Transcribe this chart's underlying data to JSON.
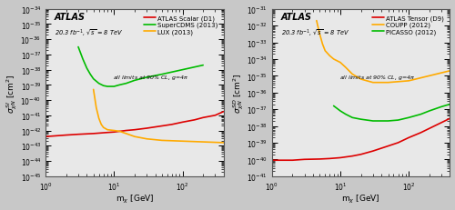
{
  "left": {
    "title": "ATLAS",
    "subtitle": "20.3 fb$^{-1}$, $\\sqrt{s}$ = 8 TeV",
    "annotation": "all limits at 90% CL, g=4$\\pi$",
    "ylabel": "$\\sigma_{\\chi N}^{SI}$ [cm$^{2}$]",
    "xlabel": "m$_{\\chi}$ [GeV]",
    "ylim_exp": [
      -45,
      -34
    ],
    "xlim": [
      1,
      400
    ],
    "curves": {
      "atlas": {
        "label": "ATLAS Scalar (D1)",
        "color": "#dd0000",
        "x": [
          1,
          2,
          3,
          5,
          7,
          10,
          15,
          20,
          30,
          50,
          70,
          100,
          150,
          200,
          300,
          400
        ],
        "y_exp": [
          -42.4,
          -42.3,
          -42.25,
          -42.2,
          -42.15,
          -42.1,
          -42.0,
          -41.95,
          -41.85,
          -41.7,
          -41.6,
          -41.45,
          -41.3,
          -41.15,
          -41.0,
          -40.75
        ]
      },
      "supercdms": {
        "label": "SuperCDMS (2013)",
        "color": "#00bb00",
        "x": [
          3,
          3.5,
          4,
          4.5,
          5,
          6,
          7,
          8,
          10,
          12,
          15,
          20,
          30,
          50,
          100,
          200
        ],
        "y_exp": [
          -36.5,
          -37.3,
          -37.9,
          -38.3,
          -38.6,
          -38.9,
          -39.05,
          -39.1,
          -39.1,
          -39.0,
          -38.9,
          -38.7,
          -38.5,
          -38.3,
          -38.0,
          -37.7
        ]
      },
      "lux": {
        "label": "LUX (2013)",
        "color": "#ffaa00",
        "x": [
          5.0,
          5.5,
          6.0,
          6.5,
          7.0,
          8.0,
          10,
          12,
          15,
          20,
          30,
          50,
          100,
          200,
          400
        ],
        "y_exp": [
          -39.3,
          -40.5,
          -41.2,
          -41.6,
          -41.8,
          -41.95,
          -42.0,
          -42.05,
          -42.2,
          -42.4,
          -42.55,
          -42.65,
          -42.7,
          -42.75,
          -42.8
        ]
      }
    }
  },
  "right": {
    "title": "ATLAS",
    "subtitle": "20.3 fb$^{-1}$, $\\sqrt{s}$ = 8 TeV",
    "annotation": "all limits at 90% CL, g=4$\\pi$",
    "ylabel": "$\\sigma_{\\chi N}^{SD}$ [cm$^{2}$]",
    "xlabel": "m$_{\\chi}$ [GeV]",
    "ylim_exp": [
      -41,
      -31
    ],
    "xlim": [
      1,
      400
    ],
    "curves": {
      "atlas": {
        "label": "ATLAS Tensor (D9)",
        "color": "#dd0000",
        "x": [
          1,
          2,
          3,
          5,
          7,
          10,
          15,
          20,
          30,
          50,
          70,
          100,
          150,
          200,
          300,
          400
        ],
        "y_exp": [
          -40.05,
          -40.05,
          -40.0,
          -39.98,
          -39.95,
          -39.9,
          -39.8,
          -39.7,
          -39.5,
          -39.2,
          -39.0,
          -38.7,
          -38.4,
          -38.15,
          -37.8,
          -37.55
        ]
      },
      "coupp": {
        "label": "COUPP (2012)",
        "color": "#ffaa00",
        "x": [
          4.5,
          5,
          5.5,
          6,
          7,
          8,
          10,
          12,
          15,
          20,
          30,
          50,
          100,
          200,
          400
        ],
        "y_exp": [
          -31.7,
          -32.5,
          -33.1,
          -33.5,
          -33.8,
          -34.0,
          -34.2,
          -34.5,
          -34.9,
          -35.2,
          -35.4,
          -35.4,
          -35.3,
          -35.0,
          -34.7
        ]
      },
      "picasso": {
        "label": "PICASSO (2012)",
        "color": "#00bb00",
        "x": [
          8,
          10,
          12,
          15,
          20,
          30,
          50,
          70,
          100,
          150,
          200,
          300,
          400
        ],
        "y_exp": [
          -36.8,
          -37.1,
          -37.3,
          -37.5,
          -37.6,
          -37.7,
          -37.7,
          -37.65,
          -37.5,
          -37.3,
          -37.1,
          -36.85,
          -36.7
        ]
      }
    }
  },
  "outer_bg": "#c8c8c8",
  "plot_bg": "#e8e8e8",
  "line_width": 1.2,
  "figsize": [
    5.0,
    2.32
  ],
  "dpi": 100
}
